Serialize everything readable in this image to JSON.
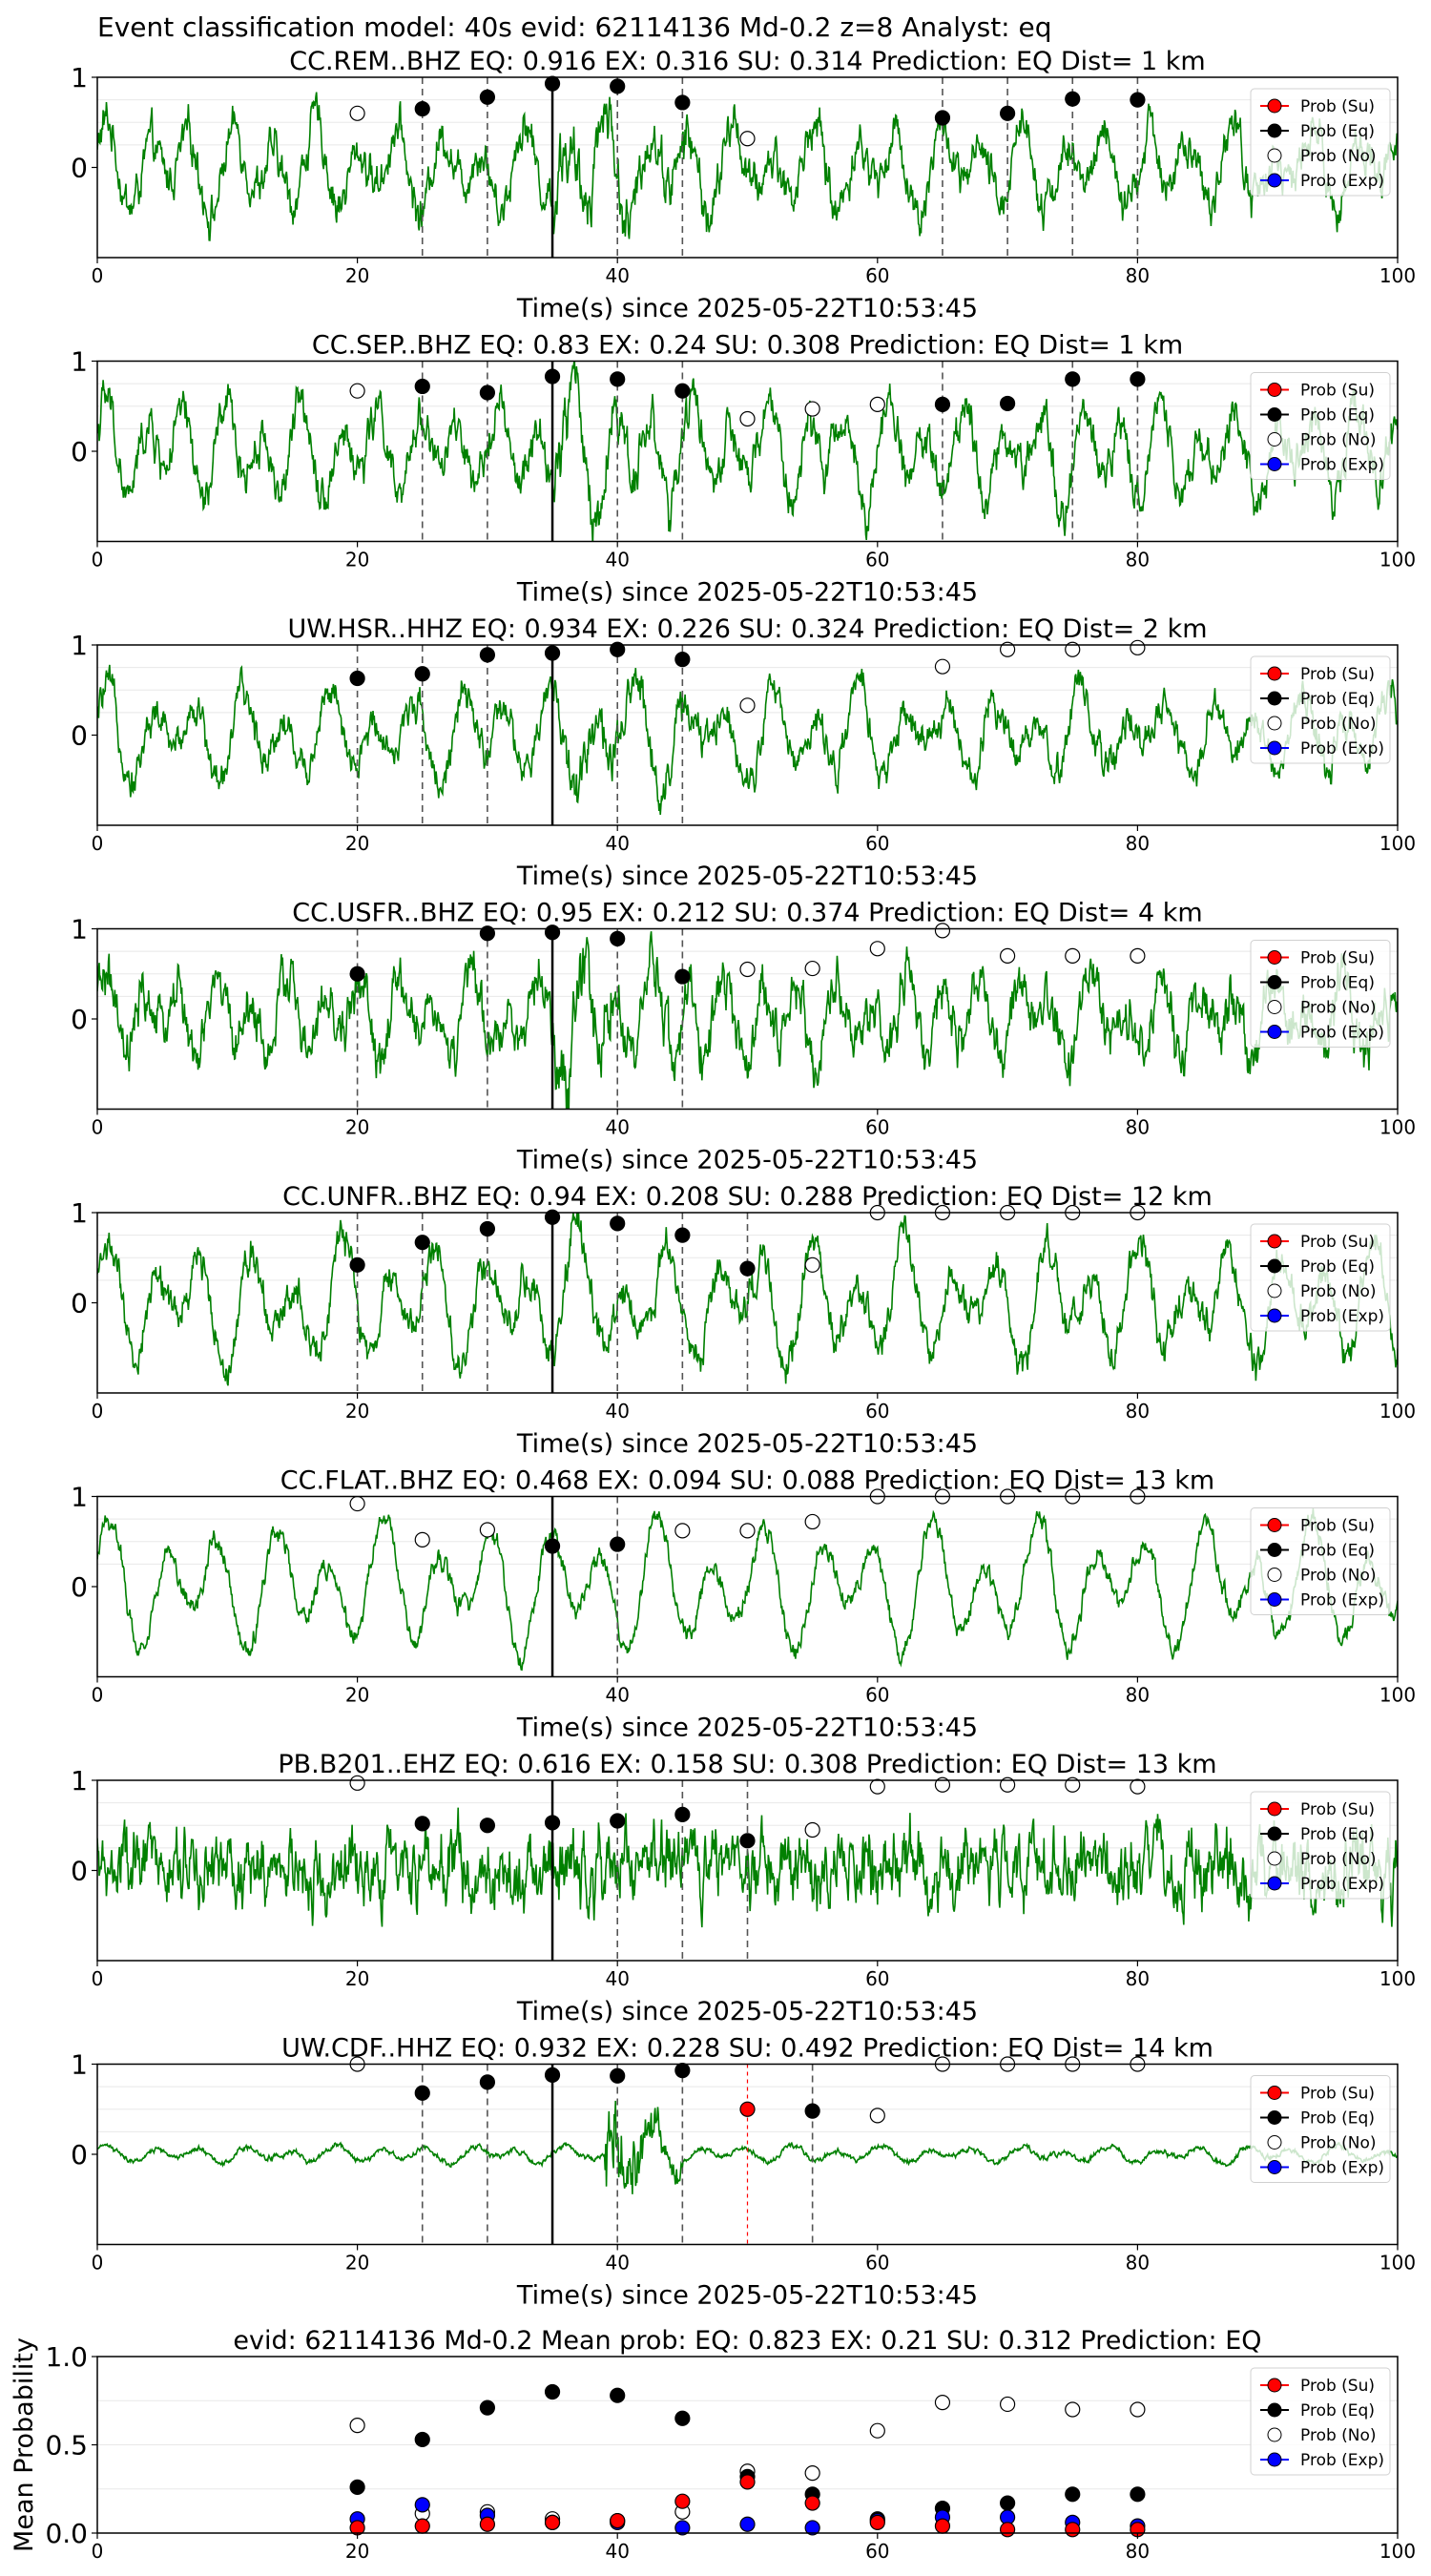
{
  "figure": {
    "suptitle": "Event classification model: 40s evid: 62114136 Md-0.2 z=8 Analyst: eq"
  },
  "legend_labels": [
    "Prob (Su)",
    "Prob (Eq)",
    "Prob (No)",
    "Prob (Exp)"
  ],
  "colors": {
    "waveform": "#008000",
    "su": "#ff0000",
    "eq": "#000000",
    "no": "#ffffff",
    "exp": "#0000ff",
    "dashed_line": "#555555",
    "pick_line": "#000000"
  },
  "chart_data": [
    {
      "type": "scatter",
      "title": "CC.REM..BHZ   EQ: 0.916  EX: 0.316  SU: 0.314   Prediction: EQ    Dist= 1 km",
      "xlabel": "Time(s) since 2025-05-22T10:53:45",
      "ylabel": "",
      "xlim": [
        0,
        100
      ],
      "ylim": [
        -1,
        1
      ],
      "xticks": [
        "0",
        "20",
        "40",
        "60",
        "80",
        "100"
      ],
      "yticks": [
        "1",
        "0"
      ],
      "pick_time": 35,
      "dashed_lines": [
        25,
        30,
        40,
        45,
        65,
        70,
        75,
        80
      ],
      "red_lines": [],
      "waveform": {
        "amplitude": 0.4,
        "noise": 0.3,
        "period": 3.2,
        "burst_start": 35,
        "burst_end": 48,
        "burst_gain": 1.7
      },
      "series": [
        {
          "name": "Prob (Eq)",
          "x": [
            25,
            30,
            35,
            40,
            45,
            65,
            70,
            75,
            80
          ],
          "y": [
            0.65,
            0.78,
            0.93,
            0.9,
            0.72,
            0.55,
            0.6,
            0.76,
            0.75
          ]
        },
        {
          "name": "Prob (No)",
          "x": [
            20,
            50
          ],
          "y": [
            0.6,
            0.32
          ]
        }
      ]
    },
    {
      "type": "scatter",
      "title": "CC.SEP..BHZ   EQ: 0.83  EX: 0.24  SU: 0.308   Prediction: EQ    Dist= 1 km",
      "xlabel": "Time(s) since 2025-05-22T10:53:45",
      "ylabel": "",
      "xlim": [
        0,
        100
      ],
      "ylim": [
        -1,
        1
      ],
      "xticks": [
        "0",
        "20",
        "40",
        "60",
        "80",
        "100"
      ],
      "yticks": [
        "1",
        "0"
      ],
      "pick_time": 35,
      "dashed_lines": [
        25,
        30,
        40,
        45,
        65,
        75,
        80
      ],
      "red_lines": [],
      "waveform": {
        "amplitude": 0.45,
        "noise": 0.3,
        "period": 3.0,
        "burst_start": 35,
        "burst_end": 48,
        "burst_gain": 1.6
      },
      "series": [
        {
          "name": "Prob (Eq)",
          "x": [
            25,
            30,
            35,
            40,
            45,
            65,
            70,
            75,
            80
          ],
          "y": [
            0.72,
            0.65,
            0.83,
            0.8,
            0.67,
            0.52,
            0.53,
            0.8,
            0.8
          ]
        },
        {
          "name": "Prob (No)",
          "x": [
            20,
            50,
            55,
            60
          ],
          "y": [
            0.67,
            0.36,
            0.47,
            0.52
          ]
        }
      ]
    },
    {
      "type": "scatter",
      "title": "UW.HSR..HHZ   EQ: 0.934  EX: 0.226  SU: 0.324   Prediction: EQ    Dist= 2 km",
      "xlabel": "Time(s) since 2025-05-22T10:53:45",
      "ylabel": "",
      "xlim": [
        0,
        100
      ],
      "ylim": [
        -1,
        1
      ],
      "xticks": [
        "0",
        "20",
        "40",
        "60",
        "80",
        "100"
      ],
      "yticks": [
        "1",
        "0"
      ],
      "pick_time": 35,
      "dashed_lines": [
        20,
        25,
        30,
        40,
        45
      ],
      "red_lines": [],
      "waveform": {
        "amplitude": 0.4,
        "noise": 0.25,
        "period": 3.4,
        "burst_start": 36,
        "burst_end": 47,
        "burst_gain": 1.8
      },
      "series": [
        {
          "name": "Prob (Eq)",
          "x": [
            20,
            25,
            30,
            35,
            40,
            45
          ],
          "y": [
            0.63,
            0.68,
            0.89,
            0.91,
            0.95,
            0.84
          ]
        },
        {
          "name": "Prob (No)",
          "x": [
            50,
            65,
            70,
            75,
            80
          ],
          "y": [
            0.33,
            0.76,
            0.95,
            0.95,
            0.97
          ]
        }
      ]
    },
    {
      "type": "scatter",
      "title": "CC.USFR..BHZ   EQ: 0.95  EX: 0.212  SU: 0.374   Prediction: EQ    Dist= 4 km",
      "xlabel": "Time(s) since 2025-05-22T10:53:45",
      "ylabel": "",
      "xlim": [
        0,
        100
      ],
      "ylim": [
        -1,
        1
      ],
      "xticks": [
        "0",
        "20",
        "40",
        "60",
        "80",
        "100"
      ],
      "yticks": [
        "1",
        "0"
      ],
      "pick_time": 35,
      "dashed_lines": [
        20,
        30,
        40,
        45
      ],
      "red_lines": [],
      "waveform": {
        "amplitude": 0.4,
        "noise": 0.35,
        "period": 2.8,
        "burst_start": 35,
        "burst_end": 48,
        "burst_gain": 1.9
      },
      "series": [
        {
          "name": "Prob (Eq)",
          "x": [
            20,
            30,
            35,
            40,
            45
          ],
          "y": [
            0.5,
            0.95,
            0.96,
            0.89,
            0.47
          ]
        },
        {
          "name": "Prob (No)",
          "x": [
            50,
            55,
            60,
            65,
            70,
            75,
            80
          ],
          "y": [
            0.55,
            0.56,
            0.78,
            0.98,
            0.7,
            0.7,
            0.7
          ]
        }
      ]
    },
    {
      "type": "scatter",
      "title": "CC.UNFR..BHZ   EQ: 0.94  EX: 0.208  SU: 0.288   Prediction: EQ    Dist= 12 km",
      "xlabel": "Time(s) since 2025-05-22T10:53:45",
      "ylabel": "",
      "xlim": [
        0,
        100
      ],
      "ylim": [
        -1,
        1
      ],
      "xticks": [
        "0",
        "20",
        "40",
        "60",
        "80",
        "100"
      ],
      "yticks": [
        "1",
        "0"
      ],
      "pick_time": 35,
      "dashed_lines": [
        20,
        25,
        30,
        40,
        45,
        50
      ],
      "red_lines": [],
      "waveform": {
        "amplitude": 0.55,
        "noise": 0.25,
        "period": 3.6,
        "burst_start": 36,
        "burst_end": 44,
        "burst_gain": 1.3
      },
      "series": [
        {
          "name": "Prob (Eq)",
          "x": [
            20,
            25,
            30,
            35,
            40,
            45,
            50
          ],
          "y": [
            0.42,
            0.67,
            0.82,
            0.95,
            0.88,
            0.75,
            0.38
          ]
        },
        {
          "name": "Prob (No)",
          "x": [
            55,
            60,
            65,
            70,
            75,
            80
          ],
          "y": [
            0.42,
            1.0,
            1.0,
            1.0,
            1.0,
            1.0
          ]
        }
      ]
    },
    {
      "type": "scatter",
      "title": "CC.FLAT..BHZ   EQ: 0.468  EX: 0.094  SU: 0.088   Prediction: EQ    Dist= 13 km",
      "xlabel": "Time(s) since 2025-05-22T10:53:45",
      "ylabel": "",
      "xlim": [
        0,
        100
      ],
      "ylim": [
        -1,
        1
      ],
      "xticks": [
        "0",
        "20",
        "40",
        "60",
        "80",
        "100"
      ],
      "yticks": [
        "1",
        "0"
      ],
      "pick_time": 35,
      "dashed_lines": [
        40
      ],
      "red_lines": [],
      "waveform": {
        "amplitude": 0.6,
        "noise": 0.15,
        "period": 4.2,
        "burst_start": 0,
        "burst_end": 0,
        "burst_gain": 1.0
      },
      "series": [
        {
          "name": "Prob (Eq)",
          "x": [
            35,
            40
          ],
          "y": [
            0.45,
            0.47
          ]
        },
        {
          "name": "Prob (No)",
          "x": [
            20,
            25,
            30,
            45,
            50,
            55,
            60,
            65,
            70,
            75,
            80
          ],
          "y": [
            0.92,
            0.52,
            0.63,
            0.62,
            0.62,
            0.72,
            1.0,
            1.0,
            1.0,
            1.0,
            1.0
          ]
        }
      ]
    },
    {
      "type": "scatter",
      "title": "PB.B201..EHZ   EQ: 0.616  EX: 0.158  SU: 0.308   Prediction: EQ    Dist= 13 km",
      "xlabel": "Time(s) since 2025-05-22T10:53:45",
      "ylabel": "",
      "xlim": [
        0,
        100
      ],
      "ylim": [
        -1,
        1
      ],
      "xticks": [
        "0",
        "20",
        "40",
        "60",
        "80",
        "100"
      ],
      "yticks": [
        "1",
        "0"
      ],
      "pick_time": 35,
      "dashed_lines": [
        40,
        45,
        50
      ],
      "red_lines": [],
      "waveform": {
        "amplitude": 0.05,
        "noise": 0.5,
        "period": 0.6,
        "burst_start": 0,
        "burst_end": 0,
        "burst_gain": 1.0
      },
      "series": [
        {
          "name": "Prob (Eq)",
          "x": [
            25,
            30,
            35,
            40,
            45,
            50
          ],
          "y": [
            0.52,
            0.5,
            0.53,
            0.55,
            0.62,
            0.33
          ]
        },
        {
          "name": "Prob (No)",
          "x": [
            20,
            55,
            60,
            65,
            70,
            75,
            80
          ],
          "y": [
            0.97,
            0.45,
            0.93,
            0.95,
            0.95,
            0.95,
            0.93
          ]
        }
      ]
    },
    {
      "type": "scatter",
      "title": "UW.CDF..HHZ   EQ: 0.932  EX: 0.228  SU: 0.492   Prediction: EQ    Dist= 14 km",
      "xlabel": "Time(s) since 2025-05-22T10:53:45",
      "ylabel": "",
      "xlim": [
        0,
        100
      ],
      "ylim": [
        -1,
        1
      ],
      "xticks": [
        "0",
        "20",
        "40",
        "60",
        "80",
        "100"
      ],
      "yticks": [
        "1",
        "0"
      ],
      "pick_time": 35,
      "dashed_lines": [
        25,
        30,
        40,
        45,
        55
      ],
      "red_lines": [
        50
      ],
      "waveform": {
        "amplitude": 0.08,
        "noise": 0.04,
        "period": 3.5,
        "burst_start": 39,
        "burst_end": 45,
        "burst_gain": 9.0
      },
      "series": [
        {
          "name": "Prob (Su)",
          "x": [
            50
          ],
          "y": [
            0.5
          ]
        },
        {
          "name": "Prob (Eq)",
          "x": [
            25,
            30,
            35,
            40,
            45,
            55
          ],
          "y": [
            0.68,
            0.8,
            0.88,
            0.87,
            0.93,
            0.48
          ]
        },
        {
          "name": "Prob (No)",
          "x": [
            20,
            60,
            65,
            70,
            75,
            80
          ],
          "y": [
            1.0,
            0.43,
            1.0,
            1.0,
            1.0,
            1.0
          ]
        }
      ]
    },
    {
      "type": "scatter",
      "title": "evid: 62114136  Md-0.2   Mean prob:    EQ: 0.823  EX: 0.21  SU: 0.312   Prediction: EQ",
      "xlabel": "",
      "ylabel": "Mean Probability",
      "xlim": [
        0,
        100
      ],
      "ylim": [
        0,
        1
      ],
      "xticks": [
        "0",
        "20",
        "40",
        "60",
        "80",
        "100"
      ],
      "yticks": [
        "1.0",
        "0.5",
        "0.0"
      ],
      "series": [
        {
          "name": "Prob (Su)",
          "x": [
            20,
            25,
            30,
            35,
            40,
            45,
            50,
            55,
            60,
            65,
            70,
            75,
            80
          ],
          "y": [
            0.03,
            0.04,
            0.05,
            0.06,
            0.07,
            0.18,
            0.29,
            0.17,
            0.06,
            0.04,
            0.02,
            0.02,
            0.02
          ]
        },
        {
          "name": "Prob (Eq)",
          "x": [
            20,
            25,
            30,
            35,
            40,
            45,
            50,
            55,
            60,
            65,
            70,
            75,
            80
          ],
          "y": [
            0.26,
            0.53,
            0.71,
            0.8,
            0.78,
            0.65,
            0.32,
            0.22,
            0.08,
            0.14,
            0.17,
            0.22,
            0.22
          ]
        },
        {
          "name": "Prob (No)",
          "x": [
            20,
            25,
            30,
            35,
            40,
            45,
            50,
            55,
            60,
            65,
            70,
            75,
            80
          ],
          "y": [
            0.61,
            0.11,
            0.12,
            0.08,
            0.07,
            0.12,
            0.35,
            0.34,
            0.58,
            0.74,
            0.73,
            0.7,
            0.7
          ]
        },
        {
          "name": "Prob (Exp)",
          "x": [
            20,
            25,
            30,
            35,
            40,
            45,
            50,
            55,
            60,
            65,
            70,
            75,
            80
          ],
          "y": [
            0.08,
            0.16,
            0.1,
            0.06,
            0.06,
            0.03,
            0.05,
            0.03,
            0.07,
            0.09,
            0.09,
            0.06,
            0.04
          ]
        }
      ]
    }
  ]
}
